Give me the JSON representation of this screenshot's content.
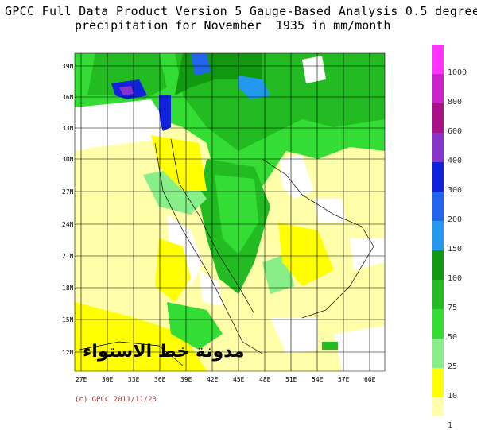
{
  "title_line1": "GPCC Full Data Product Version 5 Gauge-Based Analysis 0.5 degree",
  "title_line2": "precipitation for November  1935 in mm/month",
  "watermark": "مدونة خط الاستواء",
  "credit": "(c) GPCC 2011/11/23",
  "lat_labels": [
    "39N",
    "36N",
    "33N",
    "30N",
    "27N",
    "24N",
    "21N",
    "18N",
    "15N",
    "12N"
  ],
  "lon_labels": [
    "27E",
    "30E",
    "33E",
    "36E",
    "39E",
    "42E",
    "45E",
    "48E",
    "51E",
    "54E",
    "57E",
    "60E"
  ],
  "legend": {
    "labels": [
      "1000",
      "800",
      "600",
      "400",
      "300",
      "200",
      "150",
      "100",
      "75",
      "50",
      "25",
      "10",
      "1"
    ],
    "colors": [
      "#ff33ff",
      "#cc22cc",
      "#aa1188",
      "#8833cc",
      "#1122dd",
      "#2266ee",
      "#2299ee",
      "#119911",
      "#22bb22",
      "#33dd33",
      "#88ee88",
      "#ffff00",
      "#ffffaa"
    ]
  }
}
